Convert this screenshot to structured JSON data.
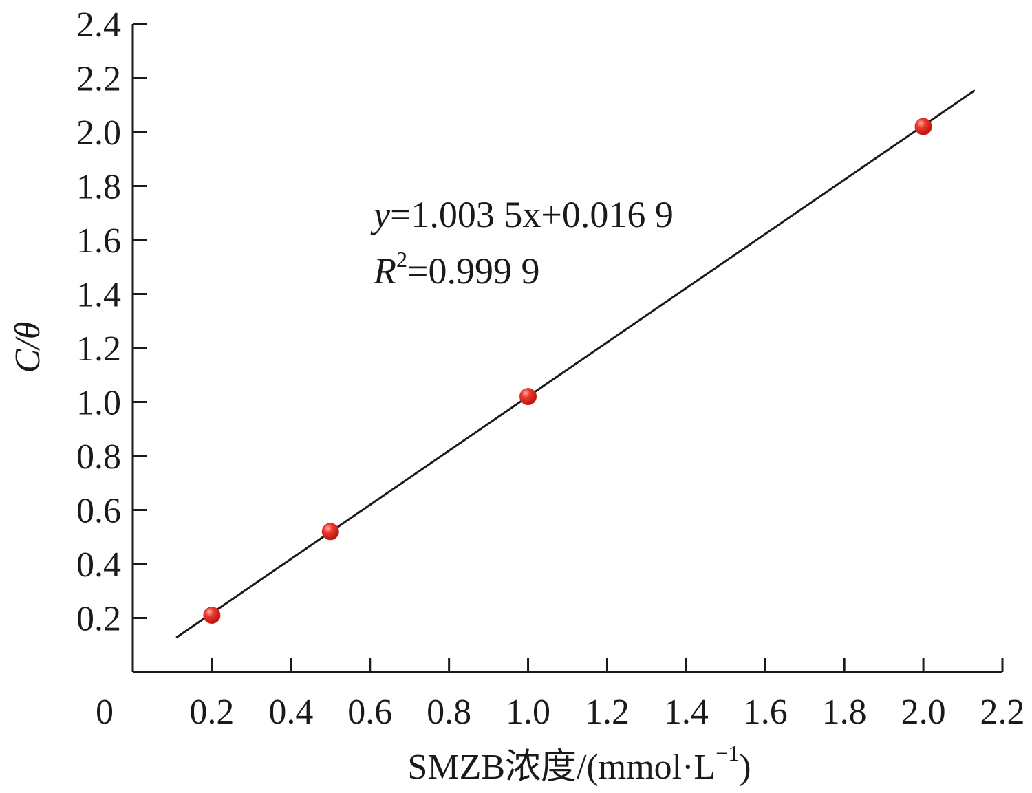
{
  "chart_data": {
    "type": "scatter",
    "xlabel": "SMZB浓度/(mmol·L",
    "xlabel_sup": "−1",
    "xlabel_close": ")",
    "ylabel": "C/θ",
    "xlim": [
      0,
      2.2
    ],
    "ylim": [
      0,
      2.4
    ],
    "x_ticks": [
      0.2,
      0.4,
      0.6,
      0.8,
      1.0,
      1.2,
      1.4,
      1.6,
      1.8,
      2.0,
      2.2
    ],
    "x_tick_labels": [
      "0.2",
      "0.4",
      "0.6",
      "0.8",
      "1.0",
      "1.2",
      "1.4",
      "1.6",
      "1.8",
      "2.0",
      "2.2"
    ],
    "y_ticks": [
      0.2,
      0.4,
      0.6,
      0.8,
      1.0,
      1.2,
      1.4,
      1.6,
      1.8,
      2.0,
      2.2,
      2.4
    ],
    "y_tick_labels": [
      "0.2",
      "0.4",
      "0.6",
      "0.8",
      "1.0",
      "1.2",
      "1.4",
      "1.6",
      "1.8",
      "2.0",
      "2.2",
      "2.4"
    ],
    "origin_label": "0",
    "points": [
      {
        "x": 0.2,
        "y": 0.21
      },
      {
        "x": 0.5,
        "y": 0.52
      },
      {
        "x": 1.0,
        "y": 1.02
      },
      {
        "x": 2.0,
        "y": 2.02
      }
    ],
    "point_color": "#e0241c",
    "fit": {
      "slope": 1.0035,
      "intercept": 0.0169,
      "x_range": [
        0.11,
        2.13
      ]
    },
    "equation": {
      "y_var": "y",
      "rhs": "=1.003 5x+0.016 9",
      "r_var": "R",
      "r_sup": "2",
      "r_rhs": "=0.999 9"
    },
    "grid": false,
    "legend": "none"
  }
}
